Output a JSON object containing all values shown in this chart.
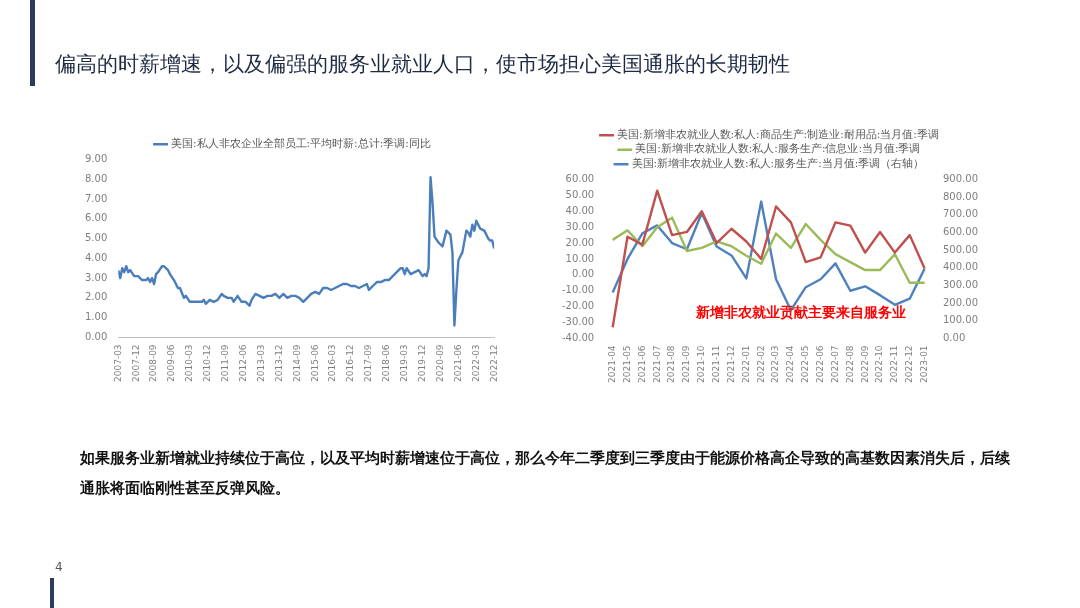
{
  "chart_data": [
    {
      "type": "line",
      "title": "偏高的时薪增速，以及偏强的服务业就业人口，使市场担心美国通胀的长期韧性",
      "annotations": [
        "如果服务业新增就业持续位于高位，以及平均时薪增速位于高位，那么今年二季度到三季度由于能源价格高企导致的高基数因素消失后，后续通胀将面临刚性甚至反弹风险。",
        "4"
      ],
      "legend": "top",
      "x": [
        "2007-03",
        "2007-04",
        "2007-05",
        "2007-06",
        "2007-07",
        "2007-08",
        "2007-09",
        "2007-11",
        "2008-01",
        "2008-03",
        "2008-05",
        "2008-06",
        "2008-07",
        "2008-08",
        "2008-09",
        "2008-10",
        "2008-11",
        "2009-01",
        "2009-02",
        "2009-04",
        "2009-05",
        "2009-07",
        "2009-09",
        "2009-10",
        "2009-12",
        "2010-01",
        "2010-03",
        "2010-05",
        "2010-07",
        "2010-09",
        "2010-10",
        "2010-11",
        "2011-01",
        "2011-03",
        "2011-05",
        "2011-07",
        "2011-08",
        "2011-10",
        "2011-12",
        "2012-01",
        "2012-03",
        "2012-05",
        "2012-07",
        "2012-09",
        "2012-10",
        "2012-12",
        "2013-02",
        "2013-04",
        "2013-06",
        "2013-08",
        "2013-10",
        "2013-12",
        "2014-02",
        "2014-04",
        "2014-06",
        "2014-08",
        "2014-10",
        "2014-12",
        "2015-02",
        "2015-04",
        "2015-06",
        "2015-08",
        "2015-10",
        "2015-12",
        "2016-02",
        "2016-04",
        "2016-06",
        "2016-08",
        "2016-10",
        "2016-12",
        "2017-02",
        "2017-04",
        "2017-06",
        "2017-08",
        "2017-09",
        "2017-11",
        "2018-01",
        "2018-03",
        "2018-05",
        "2018-07",
        "2018-09",
        "2018-11",
        "2019-01",
        "2019-02",
        "2019-03",
        "2019-04",
        "2019-06",
        "2019-08",
        "2019-10",
        "2019-12",
        "2020-01",
        "2020-02",
        "2020-03",
        "2020-04",
        "2020-05",
        "2020-06",
        "2020-08",
        "2020-10",
        "2020-12",
        "2021-01",
        "2021-02",
        "2021-03",
        "2021-04",
        "2021-05",
        "2021-06",
        "2021-08",
        "2021-10",
        "2021-11",
        "2021-12",
        "2022-01",
        "2022-02",
        "2022-03",
        "2022-05",
        "2022-07",
        "2022-09",
        "2022-10",
        "2022-11",
        "2022-12"
      ],
      "series": [
        {
          "name": "美国:私人非农企业全部员工:平均时薪:总计:季调:同比",
          "color": "#4a7ebb",
          "values": [
            3.4,
            3.0,
            3.5,
            3.3,
            3.6,
            3.3,
            3.4,
            3.1,
            3.1,
            2.9,
            2.9,
            3.0,
            2.8,
            3.0,
            2.7,
            3.2,
            3.3,
            3.6,
            3.6,
            3.4,
            3.2,
            2.9,
            2.5,
            2.5,
            2.0,
            2.1,
            1.8,
            1.8,
            1.8,
            1.8,
            1.9,
            1.7,
            1.9,
            1.8,
            1.9,
            2.2,
            2.1,
            2.0,
            2.0,
            1.8,
            2.1,
            1.8,
            1.8,
            1.6,
            1.9,
            2.2,
            2.1,
            2.0,
            2.1,
            2.1,
            2.2,
            2.0,
            2.2,
            2.0,
            2.1,
            2.1,
            2.0,
            1.8,
            2.0,
            2.2,
            2.3,
            2.2,
            2.5,
            2.5,
            2.4,
            2.5,
            2.6,
            2.7,
            2.7,
            2.6,
            2.6,
            2.5,
            2.6,
            2.7,
            2.4,
            2.6,
            2.8,
            2.8,
            2.9,
            2.9,
            3.1,
            3.3,
            3.5,
            3.5,
            3.2,
            3.5,
            3.2,
            3.3,
            3.4,
            3.1,
            3.2,
            3.1,
            3.5,
            8.1,
            6.8,
            5.1,
            4.8,
            4.6,
            5.4,
            5.3,
            5.2,
            4.3,
            0.6,
            2.4,
            3.9,
            4.3,
            5.4,
            5.3,
            5.1,
            5.7,
            5.4,
            5.9,
            5.5,
            5.4,
            5.0,
            4.9,
            4.9,
            4.5
          ]
        }
      ],
      "xlim": [
        "2007-03",
        "2022-12"
      ],
      "xticks": [
        "2007-03",
        "2007-12",
        "2008-09",
        "2009-06",
        "2010-03",
        "2010-12",
        "2011-09",
        "2012-06",
        "2013-03",
        "2013-12",
        "2014-09",
        "2015-06",
        "2016-03",
        "2016-12",
        "2017-09",
        "2018-06",
        "2019-03",
        "2019-12",
        "2020-09",
        "2021-06",
        "2022-03",
        "2022-12"
      ],
      "ylim": [
        0,
        9
      ],
      "yticks": [
        {
          "value": 0,
          "label": "0.00"
        },
        {
          "value": 1,
          "label": "1.00"
        },
        {
          "value": 2,
          "label": "2.00"
        },
        {
          "value": 3,
          "label": "3.00"
        },
        {
          "value": 4,
          "label": "4.00"
        },
        {
          "value": 5,
          "label": "5.00"
        },
        {
          "value": 6,
          "label": "6.00"
        },
        {
          "value": 7,
          "label": "7.00"
        },
        {
          "value": 8,
          "label": "8.00"
        },
        {
          "value": 9,
          "label": "9.00"
        }
      ]
    },
    {
      "type": "line",
      "legend": "top",
      "annotations": [
        "新增非农就业贡献主要来自服务业"
      ],
      "categories": [
        "2021-04",
        "2021-05",
        "2021-06",
        "2021-07",
        "2021-08",
        "2021-09",
        "2021-10",
        "2021-11",
        "2021-12",
        "2022-01",
        "2022-02",
        "2022-03",
        "2022-04",
        "2022-05",
        "2022-06",
        "2022-07",
        "2022-08",
        "2022-09",
        "2022-10",
        "2022-11",
        "2022-12",
        "2023-01"
      ],
      "series": [
        {
          "name": "美国:新增非农就业人数:私人:商品生产:制造业:耐用品:当月值:季调",
          "color": "#c0504d",
          "values": [
            -33,
            24,
            19,
            53,
            25,
            27,
            40,
            20,
            29,
            21,
            10,
            43,
            33,
            8,
            11,
            33,
            31,
            14,
            27,
            14,
            25,
            4
          ]
        },
        {
          "name": "美国:新增非农就业人数:私人:服务生产:信息业:当月值:季调",
          "color": "#9bbb59",
          "values": [
            22,
            28,
            18,
            30,
            36,
            15,
            17,
            21,
            18,
            12,
            7,
            26,
            17,
            32,
            22,
            13,
            8,
            3,
            3,
            13,
            -5,
            -5
          ]
        },
        {
          "name": "美国:新增非农就业人数:私人:服务生产:当月值:季调（右轴）",
          "color": "#4f81bd",
          "axis": "y2",
          "values": [
            260,
            450,
            595,
            640,
            540,
            505,
            710,
            520,
            470,
            340,
            775,
            335,
            160,
            290,
            335,
            425,
            270,
            295,
            245,
            190,
            225,
            395
          ]
        }
      ],
      "ylim": [
        -40,
        60
      ],
      "yticks": [
        {
          "value": -40,
          "label": "-40.00"
        },
        {
          "value": -30,
          "label": "-30.00"
        },
        {
          "value": -20,
          "label": "-20.00"
        },
        {
          "value": -10,
          "label": "-10.00"
        },
        {
          "value": 0,
          "label": "0.00"
        },
        {
          "value": 10,
          "label": "10.00"
        },
        {
          "value": 20,
          "label": "20.00"
        },
        {
          "value": 30,
          "label": "30.00"
        },
        {
          "value": 40,
          "label": "40.00"
        },
        {
          "value": 50,
          "label": "50.00"
        },
        {
          "value": 60,
          "label": "60.00"
        }
      ],
      "y2lim": [
        0,
        900
      ],
      "y2ticks": [
        {
          "value": 0,
          "label": "0.00"
        },
        {
          "value": 100,
          "label": "100.00"
        },
        {
          "value": 200,
          "label": "200.00"
        },
        {
          "value": 300,
          "label": "300.00"
        },
        {
          "value": 400,
          "label": "400.00"
        },
        {
          "value": 500,
          "label": "500.00"
        },
        {
          "value": 600,
          "label": "600.00"
        },
        {
          "value": 700,
          "label": "700.00"
        },
        {
          "value": 800,
          "label": "800.00"
        },
        {
          "value": 900,
          "label": "900.00"
        }
      ]
    }
  ]
}
